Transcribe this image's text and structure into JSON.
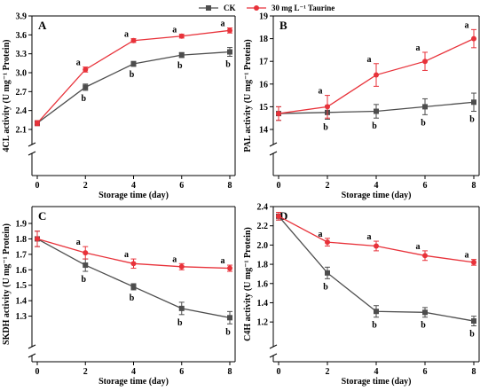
{
  "legend": {
    "ck_label": "CK",
    "taurine_label": "30 mg L⁻¹ Taurine"
  },
  "colors": {
    "ck": "#4d4d4d",
    "taurine": "#e8323a",
    "axis": "#000000"
  },
  "chart_data": [
    {
      "type": "line",
      "panel_label": "A",
      "x": [
        0,
        2,
        4,
        6,
        8
      ],
      "xlabel": "Storage time (day)",
      "ylabel": "4CL activity (U mg⁻¹ Protein)",
      "xlim": [
        0,
        8
      ],
      "ylim": [
        2.1,
        3.9
      ],
      "yticks": [
        2.1,
        2.4,
        2.7,
        3.0,
        3.3,
        3.6,
        3.9
      ],
      "ytick_labels": [
        "2.1",
        "2.4",
        "2.7",
        "3.0",
        "3.3",
        "3.6",
        "3.9"
      ],
      "axis_break": true,
      "grid": false,
      "series": [
        {
          "name": "CK",
          "values": [
            2.2,
            2.77,
            3.14,
            3.28,
            3.33
          ],
          "errors": [
            0.04,
            0.05,
            0.04,
            0.04,
            0.07
          ],
          "sig": [
            "",
            "b",
            "b",
            "b",
            "b"
          ]
        },
        {
          "name": "30 mg L⁻¹ Taurine",
          "values": [
            2.2,
            3.05,
            3.51,
            3.58,
            3.67
          ],
          "errors": [
            0.04,
            0.04,
            0.03,
            0.03,
            0.04
          ],
          "sig": [
            "",
            "a",
            "a",
            "a",
            "a"
          ]
        }
      ]
    },
    {
      "type": "line",
      "panel_label": "B",
      "x": [
        0,
        2,
        4,
        6,
        8
      ],
      "xlabel": "Storage time (day)",
      "ylabel": "PAL activity (U mg⁻¹ Protein)",
      "xlim": [
        0,
        8
      ],
      "ylim": [
        14,
        19
      ],
      "yticks": [
        14,
        15,
        16,
        17,
        18,
        19
      ],
      "ytick_labels": [
        "14",
        "15",
        "16",
        "17",
        "18",
        "19"
      ],
      "axis_break": true,
      "grid": false,
      "series": [
        {
          "name": "CK",
          "values": [
            14.7,
            14.75,
            14.8,
            15.0,
            15.2
          ],
          "errors": [
            0.3,
            0.3,
            0.3,
            0.35,
            0.4
          ],
          "sig": [
            "",
            "b",
            "b",
            "b",
            "b"
          ]
        },
        {
          "name": "30 mg L⁻¹ Taurine",
          "values": [
            14.7,
            15.0,
            16.4,
            17.0,
            18.0
          ],
          "errors": [
            0.3,
            0.5,
            0.5,
            0.4,
            0.4
          ],
          "sig": [
            "",
            "a",
            "a",
            "a",
            "a"
          ]
        }
      ]
    },
    {
      "type": "line",
      "panel_label": "C",
      "x": [
        0,
        2,
        4,
        6,
        8
      ],
      "xlabel": "Storage time (day)",
      "ylabel": "SKDH activity (U mg⁻¹ Protein)",
      "xlim": [
        0,
        8
      ],
      "ylim": [
        1.2,
        1.9
      ],
      "yticks": [
        1.3,
        1.4,
        1.5,
        1.6,
        1.7,
        1.8,
        1.9
      ],
      "ytick_labels": [
        "1.3",
        "1.4",
        "1.5",
        "1.6",
        "1.7",
        "1.8",
        "1.9"
      ],
      "axis_break": true,
      "grid": false,
      "series": [
        {
          "name": "CK",
          "values": [
            1.8,
            1.63,
            1.49,
            1.35,
            1.29
          ],
          "errors": [
            0.05,
            0.04,
            0.02,
            0.04,
            0.04
          ],
          "sig": [
            "",
            "b",
            "b",
            "b",
            "b"
          ]
        },
        {
          "name": "30 mg L⁻¹ Taurine",
          "values": [
            1.8,
            1.71,
            1.64,
            1.62,
            1.61
          ],
          "errors": [
            0.05,
            0.04,
            0.03,
            0.02,
            0.02
          ],
          "sig": [
            "",
            "a",
            "a",
            "a",
            "a"
          ]
        }
      ]
    },
    {
      "type": "line",
      "panel_label": "D",
      "x": [
        0,
        2,
        4,
        6,
        8
      ],
      "xlabel": "Storage time (day)",
      "ylabel": "C4H activity (U mg⁻¹ Protein)",
      "xlim": [
        0,
        8
      ],
      "ylim": [
        1.1,
        2.4
      ],
      "yticks": [
        1.2,
        1.4,
        1.6,
        1.8,
        2.0,
        2.2,
        2.4
      ],
      "ytick_labels": [
        "1.2",
        "1.4",
        "1.6",
        "1.8",
        "2.0",
        "2.2",
        "2.4"
      ],
      "axis_break": true,
      "grid": false,
      "series": [
        {
          "name": "CK",
          "values": [
            2.3,
            1.71,
            1.31,
            1.3,
            1.21
          ],
          "errors": [
            0.04,
            0.06,
            0.06,
            0.05,
            0.05
          ],
          "sig": [
            "",
            "b",
            "b",
            "b",
            "b"
          ]
        },
        {
          "name": "30 mg L⁻¹ Taurine",
          "values": [
            2.3,
            2.03,
            1.99,
            1.89,
            1.82
          ],
          "errors": [
            0.04,
            0.04,
            0.05,
            0.05,
            0.03
          ],
          "sig": [
            "",
            "a",
            "a",
            "a",
            "a"
          ]
        }
      ]
    }
  ]
}
